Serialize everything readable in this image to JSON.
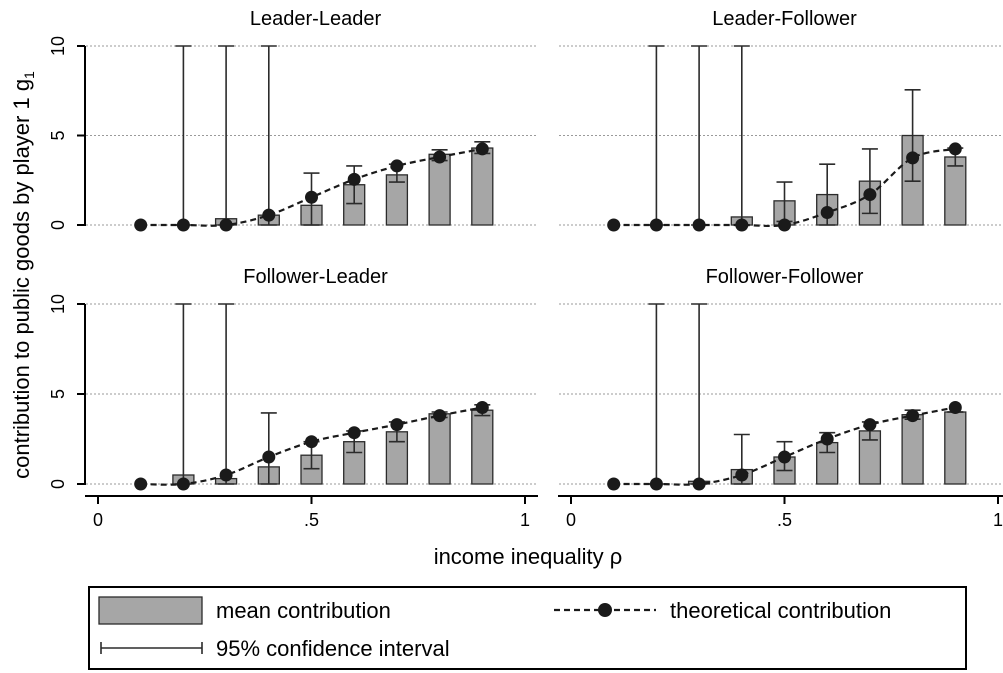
{
  "figure": {
    "ylabel": "contribution to public goods by player 1 g",
    "ylabel_sub": "1",
    "xlabel": "income inequality ρ",
    "x_ticks": [
      {
        "value": 0,
        "label": "0"
      },
      {
        "value": 0.5,
        "label": ".5"
      },
      {
        "value": 1,
        "label": "1"
      }
    ],
    "y_ticks": [
      {
        "value": 0,
        "label": "0"
      },
      {
        "value": 5,
        "label": "5"
      },
      {
        "value": 10,
        "label": "10"
      }
    ],
    "legend": {
      "bar": "mean contribution",
      "line": "theoretical contribution",
      "ci": "95% confidence interval"
    },
    "colors": {
      "bar_fill": "#a6a6a6",
      "bar_stroke": "#2b2b2b",
      "line": "#1a1a1a",
      "grid": "#9a9a9a",
      "border": "#000000"
    }
  },
  "chart_data": [
    {
      "type": "bar",
      "title": "Leader-Leader",
      "xlim": [
        0,
        1
      ],
      "ylim": [
        0,
        10
      ],
      "grid": true,
      "bars": [
        {
          "x": 0.3,
          "mean": 0.35,
          "ci": [
            0,
            10
          ]
        },
        {
          "x": 0.4,
          "mean": 0.55,
          "ci": [
            0,
            10
          ]
        },
        {
          "x": 0.5,
          "mean": 1.1,
          "ci": [
            0,
            2.9
          ]
        },
        {
          "x": 0.6,
          "mean": 2.25,
          "ci": [
            1.2,
            3.3
          ]
        },
        {
          "x": 0.7,
          "mean": 2.8,
          "ci": [
            2.4,
            3.4
          ]
        },
        {
          "x": 0.8,
          "mean": 3.95,
          "ci": [
            3.6,
            4.2
          ]
        },
        {
          "x": 0.9,
          "mean": 4.3,
          "ci": [
            4.0,
            4.65
          ]
        }
      ],
      "extra_ci": [
        {
          "x": 0.2,
          "ci": [
            0,
            10
          ]
        }
      ],
      "theoretical": {
        "x": [
          0.1,
          0.2,
          0.3,
          0.4,
          0.5,
          0.6,
          0.7,
          0.8,
          0.9
        ],
        "y": [
          0,
          0,
          0,
          0.55,
          1.55,
          2.55,
          3.3,
          3.8,
          4.25
        ]
      }
    },
    {
      "type": "bar",
      "title": "Leader-Follower",
      "xlim": [
        0,
        1
      ],
      "ylim": [
        0,
        10
      ],
      "grid": true,
      "bars": [
        {
          "x": 0.4,
          "mean": 0.45,
          "ci": [
            0,
            10
          ]
        },
        {
          "x": 0.5,
          "mean": 1.35,
          "ci": [
            0.2,
            2.4
          ]
        },
        {
          "x": 0.6,
          "mean": 1.7,
          "ci": [
            0,
            3.4
          ]
        },
        {
          "x": 0.7,
          "mean": 2.45,
          "ci": [
            0.65,
            4.25
          ]
        },
        {
          "x": 0.8,
          "mean": 5.0,
          "ci": [
            2.45,
            7.55
          ]
        },
        {
          "x": 0.9,
          "mean": 3.8,
          "ci": [
            3.3,
            4.3
          ]
        }
      ],
      "extra_ci": [
        {
          "x": 0.2,
          "ci": [
            0,
            10
          ]
        },
        {
          "x": 0.3,
          "ci": [
            0,
            10
          ]
        }
      ],
      "theoretical": {
        "x": [
          0.1,
          0.2,
          0.3,
          0.4,
          0.5,
          0.6,
          0.7,
          0.8,
          0.9
        ],
        "y": [
          0,
          0,
          0,
          0,
          0,
          0.7,
          1.7,
          3.75,
          4.25
        ]
      }
    },
    {
      "type": "bar",
      "title": "Follower-Leader",
      "xlim": [
        0,
        1
      ],
      "ylim": [
        0,
        10
      ],
      "grid": true,
      "bars": [
        {
          "x": 0.2,
          "mean": 0.5,
          "ci": [
            0,
            10
          ]
        },
        {
          "x": 0.3,
          "mean": 0.3,
          "ci": [
            0,
            10
          ]
        },
        {
          "x": 0.4,
          "mean": 0.95,
          "ci": [
            0,
            3.95
          ]
        },
        {
          "x": 0.5,
          "mean": 1.6,
          "ci": [
            0.85,
            2.35
          ]
        },
        {
          "x": 0.6,
          "mean": 2.35,
          "ci": [
            1.75,
            2.95
          ]
        },
        {
          "x": 0.7,
          "mean": 2.9,
          "ci": [
            2.35,
            3.45
          ]
        },
        {
          "x": 0.8,
          "mean": 3.9,
          "ci": [
            3.7,
            4.0
          ]
        },
        {
          "x": 0.9,
          "mean": 4.1,
          "ci": [
            3.8,
            4.4
          ]
        }
      ],
      "extra_ci": [],
      "theoretical": {
        "x": [
          0.1,
          0.2,
          0.3,
          0.4,
          0.5,
          0.6,
          0.7,
          0.8,
          0.9
        ],
        "y": [
          0,
          0,
          0.5,
          1.5,
          2.35,
          2.85,
          3.3,
          3.8,
          4.25
        ]
      }
    },
    {
      "type": "bar",
      "title": "Follower-Follower",
      "xlim": [
        0,
        1
      ],
      "ylim": [
        0,
        10
      ],
      "grid": true,
      "bars": [
        {
          "x": 0.3,
          "mean": 0.15,
          "ci": [
            0,
            10
          ]
        },
        {
          "x": 0.4,
          "mean": 0.8,
          "ci": [
            0,
            2.75
          ]
        },
        {
          "x": 0.5,
          "mean": 1.5,
          "ci": [
            0.75,
            2.35
          ]
        },
        {
          "x": 0.6,
          "mean": 2.3,
          "ci": [
            1.75,
            2.85
          ]
        },
        {
          "x": 0.7,
          "mean": 2.95,
          "ci": [
            2.45,
            3.45
          ]
        },
        {
          "x": 0.8,
          "mean": 3.85,
          "ci": [
            3.6,
            4.1
          ]
        },
        {
          "x": 0.9,
          "mean": 4.0,
          "ci": [
            4.0,
            4.0
          ]
        }
      ],
      "extra_ci": [
        {
          "x": 0.2,
          "ci": [
            0,
            10
          ]
        }
      ],
      "theoretical": {
        "x": [
          0.1,
          0.2,
          0.3,
          0.4,
          0.5,
          0.6,
          0.7,
          0.8,
          0.9
        ],
        "y": [
          0,
          0,
          0,
          0.5,
          1.5,
          2.5,
          3.3,
          3.8,
          4.25
        ]
      }
    }
  ]
}
